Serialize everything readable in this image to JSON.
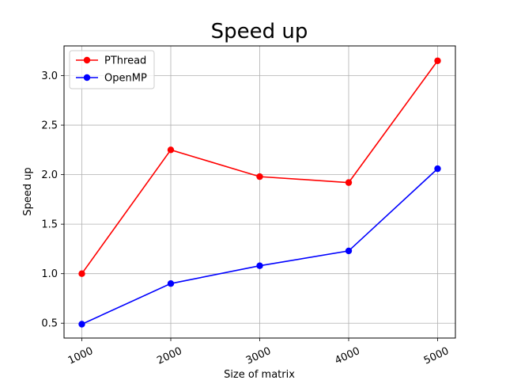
{
  "chart_data": {
    "type": "line",
    "title": "Speed up",
    "xlabel": "Size of matrix",
    "ylabel": "Speed up",
    "x": [
      1000,
      2000,
      3000,
      4000,
      5000
    ],
    "x_tick_labels": [
      "1000",
      "2000",
      "3000",
      "4000",
      "5000"
    ],
    "y_ticks": [
      0.5,
      1.0,
      1.5,
      2.0,
      2.5,
      3.0
    ],
    "y_tick_labels": [
      "0.5",
      "1.0",
      "1.5",
      "2.0",
      "2.5",
      "3.0"
    ],
    "ylim": [
      0.35,
      3.3
    ],
    "xlim": [
      800,
      5200
    ],
    "grid": true,
    "legend_position": "top-left",
    "series": [
      {
        "name": "PThread",
        "color": "#ff0000",
        "marker": "circle",
        "values": [
          1.0,
          2.25,
          1.98,
          1.92,
          3.15
        ]
      },
      {
        "name": "OpenMP",
        "color": "#0000ff",
        "marker": "circle",
        "values": [
          0.49,
          0.9,
          1.08,
          1.23,
          2.06
        ]
      }
    ]
  }
}
